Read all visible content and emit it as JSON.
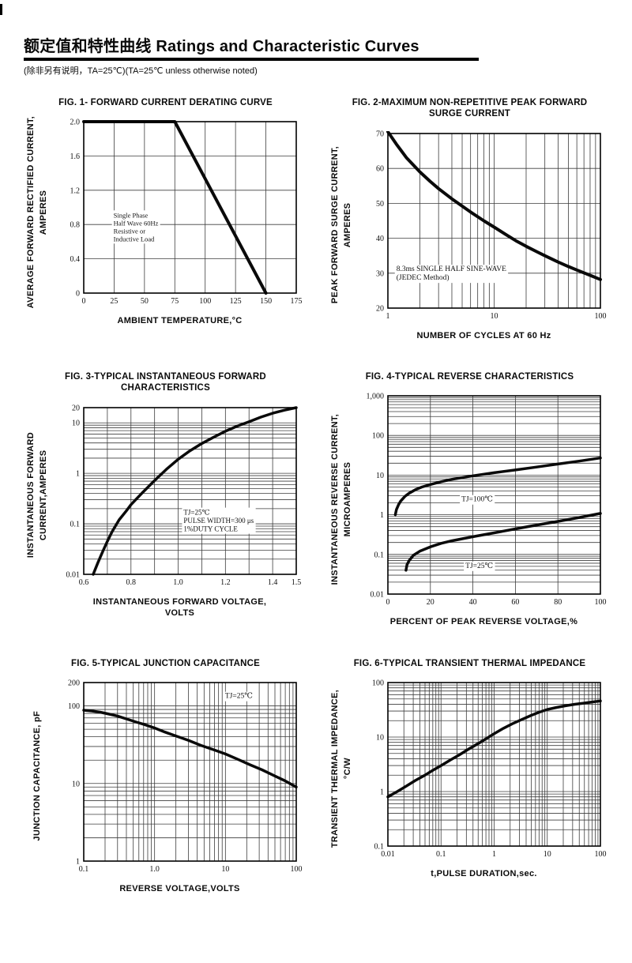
{
  "header": {
    "title": "额定值和特性曲线 Ratings and Characteristic Curves",
    "subtitle": "(除非另有说明，TA=25℃)(TA=25℃  unless otherwise noted)"
  },
  "chart_data": [
    {
      "type": "line",
      "title": "FIG. 1- FORWARD CURRENT DERATING CURVE",
      "xlabel": "AMBIENT TEMPERATURE,°C",
      "ylabel": "AVERAGE FORWARD RECTIFIED CURRENT,\nAMPERES",
      "x": {
        "scale": "linear",
        "min": 0,
        "max": 175,
        "ticks": [
          {
            "v": 0,
            "l": "0"
          },
          {
            "v": 25,
            "l": "25"
          },
          {
            "v": 50,
            "l": "50"
          },
          {
            "v": 75,
            "l": "75"
          },
          {
            "v": 100,
            "l": "100"
          },
          {
            "v": 125,
            "l": "125"
          },
          {
            "v": 150,
            "l": "150"
          },
          {
            "v": 175,
            "l": "175"
          }
        ]
      },
      "y": {
        "scale": "linear",
        "min": 0,
        "max": 2,
        "ticks": [
          {
            "v": 0,
            "l": "0"
          },
          {
            "v": 0.4,
            "l": "0.4"
          },
          {
            "v": 0.8,
            "l": "0.8"
          },
          {
            "v": 1.2,
            "l": "1.2"
          },
          {
            "v": 1.6,
            "l": "1.6"
          },
          {
            "v": 2,
            "l": "2.0"
          }
        ]
      },
      "series": [
        {
          "name": "forward-current-derating",
          "width": 4,
          "points": [
            [
              0,
              2
            ],
            [
              75,
              2
            ],
            [
              150,
              0
            ]
          ]
        }
      ],
      "annotations": [
        {
          "lines": [
            "Single Phase",
            "Half Wave 60Hz",
            "Resistive or",
            "Inductive Load"
          ],
          "px": 0.14,
          "py": 0.52,
          "anchor": "start",
          "font": "sans",
          "size": 8.5,
          "lh": 10
        }
      ]
    },
    {
      "type": "line",
      "title": "FIG. 2-MAXIMUM NON-REPETITIVE PEAK FORWARD\nSURGE CURRENT",
      "xlabel": "NUMBER OF CYCLES AT 60 Hz",
      "ylabel": "PEAK  FORWARD SURGE CURRENT,\nAMPERES",
      "x": {
        "scale": "log",
        "min": 1,
        "max": 100,
        "ticks": [
          {
            "v": 1,
            "l": "1"
          },
          {
            "v": 10,
            "l": "10"
          },
          {
            "v": 100,
            "l": "100"
          }
        ]
      },
      "y": {
        "scale": "linear",
        "min": 20,
        "max": 70,
        "ticks": [
          {
            "v": 20,
            "l": "20"
          },
          {
            "v": 30,
            "l": "30"
          },
          {
            "v": 40,
            "l": "40"
          },
          {
            "v": 50,
            "l": "50"
          },
          {
            "v": 60,
            "l": "60"
          },
          {
            "v": 70,
            "l": "70"
          }
        ]
      },
      "series": [
        {
          "name": "peak-surge-current",
          "width": 4,
          "points": [
            [
              1,
              70.5
            ],
            [
              1.2,
              67
            ],
            [
              1.5,
              63
            ],
            [
              2,
              59
            ],
            [
              2.5,
              56.3
            ],
            [
              3,
              54.2
            ],
            [
              4,
              51.3
            ],
            [
              5,
              49.2
            ],
            [
              6,
              47.5
            ],
            [
              8,
              45
            ],
            [
              10,
              43.2
            ],
            [
              13,
              41
            ],
            [
              16,
              39.3
            ],
            [
              20,
              37.7
            ],
            [
              25,
              36.2
            ],
            [
              30,
              35
            ],
            [
              40,
              33.2
            ],
            [
              50,
              31.9
            ],
            [
              60,
              30.9
            ],
            [
              80,
              29.4
            ],
            [
              100,
              28.2
            ]
          ]
        }
      ],
      "annotations": [
        {
          "lines": [
            "8.3ms SINGLE HALF SINE-WAVE",
            "(JEDEC Method)"
          ],
          "px": 0.04,
          "py": 0.745,
          "anchor": "start",
          "font": "serif",
          "size": 9.5,
          "lh": 11
        }
      ]
    },
    {
      "type": "line",
      "title": "FIG. 3-TYPICAL INSTANTANEOUS FORWARD\nCHARACTERISTICS",
      "xlabel": "INSTANTANEOUS FORWARD VOLTAGE,\nVOLTS",
      "ylabel": "INSTANTANEOUS FORWARD\nCURRENT,AMPERES",
      "x": {
        "scale": "linear",
        "min": 0.6,
        "max": 1.5,
        "ticks": [
          {
            "v": 0.6,
            "l": "0.6"
          },
          {
            "v": 0.7
          },
          {
            "v": 0.8,
            "l": "0.8"
          },
          {
            "v": 0.9
          },
          {
            "v": 1.0,
            "l": "1.0"
          },
          {
            "v": 1.1
          },
          {
            "v": 1.2,
            "l": "1.2"
          },
          {
            "v": 1.3
          },
          {
            "v": 1.4,
            "l": "1.4"
          },
          {
            "v": 1.5,
            "l": "1.5"
          }
        ]
      },
      "y": {
        "scale": "log",
        "min": 0.01,
        "max": 20,
        "ticks": [
          {
            "v": 20,
            "l": "20"
          },
          {
            "v": 10,
            "l": "10"
          },
          {
            "v": 1,
            "l": "1"
          },
          {
            "v": 0.1,
            "l": "0.1"
          },
          {
            "v": 0.01,
            "l": "0.01"
          }
        ]
      },
      "series": [
        {
          "name": "instantaneous-forward",
          "width": 3.5,
          "points": [
            [
              0.64,
              0.01
            ],
            [
              0.66,
              0.017
            ],
            [
              0.68,
              0.028
            ],
            [
              0.7,
              0.045
            ],
            [
              0.72,
              0.07
            ],
            [
              0.75,
              0.12
            ],
            [
              0.78,
              0.18
            ],
            [
              0.8,
              0.24
            ],
            [
              0.85,
              0.42
            ],
            [
              0.9,
              0.72
            ],
            [
              0.95,
              1.2
            ],
            [
              1.0,
              1.9
            ],
            [
              1.05,
              2.8
            ],
            [
              1.1,
              3.9
            ],
            [
              1.15,
              5.2
            ],
            [
              1.2,
              6.8
            ],
            [
              1.25,
              8.6
            ],
            [
              1.3,
              10.5
            ],
            [
              1.35,
              13
            ],
            [
              1.4,
              15.5
            ],
            [
              1.45,
              17.8
            ],
            [
              1.5,
              20
            ]
          ]
        }
      ],
      "annotations": [
        {
          "lines": [
            "TJ=25℃",
            "PULSE WIDTH=300 μs",
            "1%DUTY CYCLE"
          ],
          "px": 0.47,
          "py": 0.6,
          "anchor": "start",
          "font": "serif",
          "size": 9,
          "lh": 10.5
        }
      ]
    },
    {
      "type": "line",
      "title": "FIG. 4-TYPICAL REVERSE CHARACTERISTICS",
      "xlabel": "PERCENT OF PEAK REVERSE VOLTAGE,%",
      "ylabel": "INSTANTANEOUS REVERSE CURRENT,\nMICROAMPERES",
      "x": {
        "scale": "linear",
        "min": 0,
        "max": 100,
        "ticks": [
          {
            "v": 0,
            "l": "0"
          },
          {
            "v": 20,
            "l": "20"
          },
          {
            "v": 40,
            "l": "40"
          },
          {
            "v": 60,
            "l": "60"
          },
          {
            "v": 80,
            "l": "80"
          },
          {
            "v": 100,
            "l": "100"
          }
        ]
      },
      "y": {
        "scale": "log",
        "min": 0.01,
        "max": 1000,
        "ticks": [
          {
            "v": 1000,
            "l": "1,000"
          },
          {
            "v": 100,
            "l": "100"
          },
          {
            "v": 10,
            "l": "10"
          },
          {
            "v": 1,
            "l": "1"
          },
          {
            "v": 0.1,
            "l": "0.1"
          },
          {
            "v": 0.01,
            "l": "0.01"
          }
        ]
      },
      "series": [
        {
          "name": "reverse-current-tj100",
          "width": 3.5,
          "points": [
            [
              3.5,
              1.0
            ],
            [
              4,
              1.35
            ],
            [
              5,
              1.8
            ],
            [
              6,
              2.2
            ],
            [
              8,
              2.9
            ],
            [
              10,
              3.5
            ],
            [
              13,
              4.3
            ],
            [
              16,
              5.0
            ],
            [
              20,
              5.8
            ],
            [
              25,
              6.8
            ],
            [
              30,
              7.8
            ],
            [
              40,
              9.6
            ],
            [
              50,
              11.5
            ],
            [
              60,
              13.5
            ],
            [
              70,
              16
            ],
            [
              80,
              19
            ],
            [
              90,
              22.5
            ],
            [
              100,
              27
            ]
          ]
        },
        {
          "name": "reverse-current-tj25",
          "width": 3.5,
          "points": [
            [
              8.5,
              0.04
            ],
            [
              9,
              0.055
            ],
            [
              10,
              0.07
            ],
            [
              12,
              0.095
            ],
            [
              15,
              0.12
            ],
            [
              20,
              0.155
            ],
            [
              25,
              0.19
            ],
            [
              30,
              0.22
            ],
            [
              40,
              0.28
            ],
            [
              50,
              0.35
            ],
            [
              60,
              0.44
            ],
            [
              70,
              0.55
            ],
            [
              80,
              0.68
            ],
            [
              90,
              0.85
            ],
            [
              100,
              1.08
            ]
          ]
        }
      ],
      "annotations": [
        {
          "lines": [
            "TJ=100℃"
          ],
          "px": 0.42,
          "py": 0.495,
          "anchor": "middle",
          "font": "serif",
          "size": 9.5,
          "lh": 11
        },
        {
          "lines": [
            "TJ=25℃"
          ],
          "px": 0.43,
          "py": 0.83,
          "anchor": "middle",
          "font": "serif",
          "size": 9.5,
          "lh": 11
        }
      ]
    },
    {
      "type": "line",
      "title": "FIG. 5-TYPICAL JUNCTION CAPACITANCE",
      "xlabel": "REVERSE VOLTAGE,VOLTS",
      "ylabel": "JUNCTION CAPACITANCE, pF",
      "x": {
        "scale": "log",
        "min": 0.1,
        "max": 100,
        "ticks": [
          {
            "v": 0.1,
            "l": "0.1"
          },
          {
            "v": 1,
            "l": "1.0"
          },
          {
            "v": 10,
            "l": "10"
          },
          {
            "v": 100,
            "l": "100"
          }
        ]
      },
      "y": {
        "scale": "log",
        "min": 1,
        "max": 200,
        "ticks": [
          {
            "v": 200,
            "l": "200"
          },
          {
            "v": 100,
            "l": "100"
          },
          {
            "v": 10,
            "l": "10"
          },
          {
            "v": 1,
            "l": "1"
          }
        ]
      },
      "series": [
        {
          "name": "junction-capacitance",
          "width": 3.5,
          "points": [
            [
              0.1,
              88
            ],
            [
              0.13,
              86
            ],
            [
              0.17,
              83
            ],
            [
              0.22,
              79
            ],
            [
              0.3,
              74
            ],
            [
              0.4,
              68
            ],
            [
              0.55,
              62
            ],
            [
              0.7,
              58
            ],
            [
              1,
              52
            ],
            [
              1.4,
              46
            ],
            [
              2,
              41
            ],
            [
              3,
              36
            ],
            [
              4.5,
              31
            ],
            [
              7,
              27
            ],
            [
              10,
              24
            ],
            [
              15,
              20.5
            ],
            [
              22,
              17.5
            ],
            [
              33,
              15
            ],
            [
              50,
              12.5
            ],
            [
              70,
              10.8
            ],
            [
              100,
              9
            ]
          ]
        }
      ],
      "annotations": [
        {
          "lines": [
            "TJ=25℃"
          ],
          "px": 0.73,
          "py": 0.045,
          "anchor": "middle",
          "font": "serif",
          "size": 9.5,
          "lh": 11
        }
      ]
    },
    {
      "type": "line",
      "title": "FIG. 6-TYPICAL TRANSIENT THERMAL IMPEDANCE",
      "xlabel": "t,PULSE DURATION,sec.",
      "ylabel": "TRANSIENT THERMAL IMPEDANCE,\n°C/W",
      "x": {
        "scale": "log",
        "min": 0.01,
        "max": 100,
        "ticks": [
          {
            "v": 0.01,
            "l": "0.01"
          },
          {
            "v": 0.1,
            "l": "0.1"
          },
          {
            "v": 1,
            "l": "1"
          },
          {
            "v": 10,
            "l": "10"
          },
          {
            "v": 100,
            "l": "100"
          }
        ]
      },
      "y": {
        "scale": "log",
        "min": 0.1,
        "max": 100,
        "ticks": [
          {
            "v": 100,
            "l": "100"
          },
          {
            "v": 10,
            "l": "10"
          },
          {
            "v": 1,
            "l": "1"
          },
          {
            "v": 0.1,
            "l": "0.1"
          }
        ]
      },
      "series": [
        {
          "name": "transient-thermal-impedance",
          "width": 3.5,
          "points": [
            [
              0.01,
              0.8
            ],
            [
              0.015,
              1.0
            ],
            [
              0.022,
              1.25
            ],
            [
              0.033,
              1.6
            ],
            [
              0.05,
              2.0
            ],
            [
              0.07,
              2.45
            ],
            [
              0.1,
              3.0
            ],
            [
              0.15,
              3.8
            ],
            [
              0.22,
              4.7
            ],
            [
              0.33,
              6.0
            ],
            [
              0.5,
              7.6
            ],
            [
              0.7,
              9.3
            ],
            [
              1,
              11.5
            ],
            [
              1.5,
              14.5
            ],
            [
              2.2,
              17.5
            ],
            [
              3.3,
              21
            ],
            [
              5,
              25
            ],
            [
              7,
              28.5
            ],
            [
              10,
              32
            ],
            [
              15,
              35
            ],
            [
              22,
              37.5
            ],
            [
              33,
              40
            ],
            [
              50,
              42
            ],
            [
              70,
              44
            ],
            [
              100,
              46
            ]
          ]
        }
      ],
      "annotations": []
    }
  ],
  "style": {
    "curve_color": "#0a0a0a",
    "grid_color": "#3d3d3d",
    "border_color": "#000000"
  }
}
